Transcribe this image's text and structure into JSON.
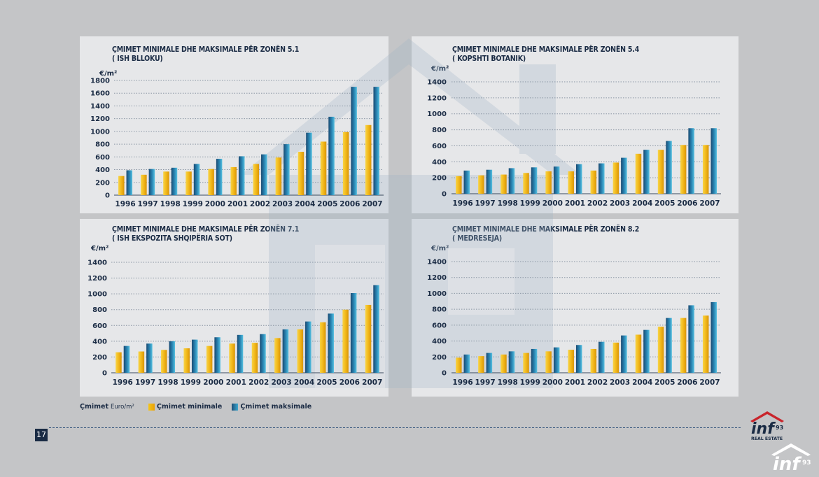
{
  "page": {
    "number": "17"
  },
  "charts": [
    {
      "title_line1": "ÇMIMET MINIMALE DHE MAKSIMALE PËR ZONËN 5.1",
      "title_line2": "( ISH BLLOKU)",
      "unit": "€/m²"
    },
    {
      "title_line1": "ÇMIMET MINIMALE DHE MAKSIMALE PËR ZONËN 5.4",
      "title_line2": "( KOPSHTI BOTANIK)",
      "unit": "€/m²"
    },
    {
      "title_line1": "ÇMIMET MINIMALE DHE MAKSIMALE PËR ZONËN 7.1",
      "title_line2": "( ISH EKSPOZITA SHQIPËRIA SOT)",
      "unit": "€/m²"
    },
    {
      "title_line1": "ÇMIMET MINIMALE DHE MAKSIMALE PËR ZONËN 8.2",
      "title_line2": "( MEDRESEJA)",
      "unit": "€/m²"
    }
  ],
  "legend": {
    "title": "Çmimet",
    "unit": "Euro/m²",
    "min_label": "Çmimet minimale",
    "max_label": "Çmimet maksimale"
  },
  "colors": {
    "min": "#f2b81a",
    "max": "#2a86b4",
    "text": "#1a2b44"
  },
  "logo": {
    "brand": "inf",
    "number": "93",
    "tagline": "REAL ESTATE"
  },
  "chart_data": [
    {
      "type": "bar",
      "title": "ÇMIMET MINIMALE DHE MAKSIMALE PËR ZONËN 5.1 ( ISH BLLOKU)",
      "ylabel": "€/m²",
      "categories": [
        "1996",
        "1997",
        "1998",
        "1999",
        "2000",
        "2001",
        "2002",
        "2003",
        "2004",
        "2005",
        "2006",
        "2007"
      ],
      "ylim": [
        0,
        1800
      ],
      "yticks": [
        0,
        200,
        400,
        600,
        800,
        1000,
        1200,
        1400,
        1600,
        1800
      ],
      "series": [
        {
          "name": "Çmimet minimale",
          "values": [
            300,
            320,
            370,
            370,
            410,
            440,
            490,
            590,
            680,
            840,
            990,
            1100
          ]
        },
        {
          "name": "Çmimet maksimale",
          "values": [
            390,
            410,
            430,
            490,
            570,
            610,
            640,
            800,
            980,
            1230,
            1700,
            1700
          ]
        }
      ]
    },
    {
      "type": "bar",
      "title": "ÇMIMET MINIMALE DHE MAKSIMALE PËR ZONËN 5.4 ( KOPSHTI BOTANIK)",
      "ylabel": "€/m²",
      "categories": [
        "1996",
        "1997",
        "1998",
        "1999",
        "2000",
        "2001",
        "2002",
        "2003",
        "2004",
        "2005",
        "2006",
        "2007"
      ],
      "ylim": [
        0,
        1400
      ],
      "yticks": [
        0,
        200,
        400,
        600,
        800,
        1000,
        1200,
        1400
      ],
      "series": [
        {
          "name": "Çmimet minimale",
          "values": [
            220,
            230,
            240,
            260,
            280,
            280,
            290,
            390,
            500,
            550,
            610,
            610
          ]
        },
        {
          "name": "Çmimet maksimale",
          "values": [
            290,
            300,
            320,
            330,
            340,
            370,
            380,
            450,
            550,
            660,
            820,
            820
          ]
        }
      ]
    },
    {
      "type": "bar",
      "title": "ÇMIMET MINIMALE DHE MAKSIMALE PËR ZONËN 7.1 ( ISH EKSPOZITA SHQIPËRIA SOT)",
      "ylabel": "€/m²",
      "categories": [
        "1996",
        "1997",
        "1998",
        "1999",
        "2000",
        "2001",
        "2002",
        "2003",
        "2004",
        "2005",
        "2006",
        "2007"
      ],
      "ylim": [
        0,
        1400
      ],
      "yticks": [
        0,
        200,
        400,
        600,
        800,
        1000,
        1200,
        1400
      ],
      "series": [
        {
          "name": "Çmimet minimale",
          "values": [
            260,
            270,
            290,
            310,
            340,
            370,
            380,
            440,
            550,
            640,
            800,
            860
          ]
        },
        {
          "name": "Çmimet maksimale",
          "values": [
            340,
            370,
            400,
            420,
            450,
            480,
            490,
            550,
            650,
            750,
            1010,
            1110
          ]
        }
      ]
    },
    {
      "type": "bar",
      "title": "ÇMIMET MINIMALE DHE MAKSIMALE PËR ZONËN 8.2 ( MEDRESEJA)",
      "ylabel": "€/m²",
      "categories": [
        "1996",
        "1997",
        "1998",
        "1999",
        "2000",
        "2001",
        "2002",
        "2003",
        "2004",
        "2005",
        "2006",
        "2007"
      ],
      "ylim": [
        0,
        1400
      ],
      "yticks": [
        0,
        200,
        400,
        600,
        800,
        1000,
        1200,
        1400
      ],
      "series": [
        {
          "name": "Çmimet minimale",
          "values": [
            190,
            210,
            230,
            250,
            270,
            290,
            300,
            380,
            480,
            580,
            690,
            720
          ]
        },
        {
          "name": "Çmimet maksimale",
          "values": [
            230,
            250,
            270,
            300,
            320,
            350,
            390,
            470,
            540,
            690,
            850,
            890
          ]
        }
      ]
    }
  ]
}
